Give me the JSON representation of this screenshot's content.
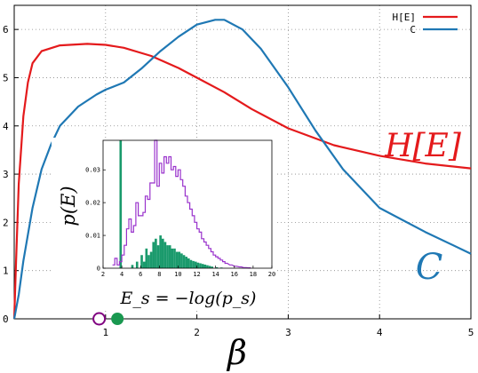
{
  "chart_data": [
    {
      "type": "line",
      "xlabel": "β",
      "ylabel": "",
      "xlim": [
        0,
        5
      ],
      "ylim": [
        0,
        6.5
      ],
      "x_ticks": [
        "1",
        "2",
        "3",
        "4",
        "5"
      ],
      "y_ticks": [
        "0",
        "1",
        "2",
        "3",
        "4",
        "5",
        "6"
      ],
      "grid": true,
      "legend_position": "top-right",
      "series": [
        {
          "name": "H[E]",
          "curve_label": "H[E]",
          "color": "#e41a1c",
          "points": [
            [
              0.0,
              0.0
            ],
            [
              0.02,
              1.2
            ],
            [
              0.05,
              2.8
            ],
            [
              0.1,
              4.2
            ],
            [
              0.15,
              4.9
            ],
            [
              0.2,
              5.3
            ],
            [
              0.3,
              5.55
            ],
            [
              0.5,
              5.67
            ],
            [
              0.8,
              5.7
            ],
            [
              1.0,
              5.68
            ],
            [
              1.2,
              5.62
            ],
            [
              1.5,
              5.45
            ],
            [
              1.8,
              5.2
            ],
            [
              2.0,
              5.0
            ],
            [
              2.3,
              4.7
            ],
            [
              2.6,
              4.35
            ],
            [
              3.0,
              3.95
            ],
            [
              3.5,
              3.6
            ],
            [
              4.0,
              3.38
            ],
            [
              4.5,
              3.22
            ],
            [
              5.0,
              3.12
            ]
          ]
        },
        {
          "name": "C",
          "curve_label": "C",
          "color": "#1f78b4",
          "points": [
            [
              0.0,
              0.0
            ],
            [
              0.05,
              0.5
            ],
            [
              0.1,
              1.2
            ],
            [
              0.2,
              2.3
            ],
            [
              0.3,
              3.1
            ],
            [
              0.4,
              3.6
            ],
            [
              0.5,
              4.0
            ],
            [
              0.7,
              4.4
            ],
            [
              0.9,
              4.65
            ],
            [
              1.0,
              4.75
            ],
            [
              1.2,
              4.9
            ],
            [
              1.4,
              5.2
            ],
            [
              1.6,
              5.55
            ],
            [
              1.8,
              5.85
            ],
            [
              2.0,
              6.1
            ],
            [
              2.2,
              6.2
            ],
            [
              2.3,
              6.2
            ],
            [
              2.5,
              6.0
            ],
            [
              2.7,
              5.6
            ],
            [
              3.0,
              4.8
            ],
            [
              3.3,
              3.9
            ],
            [
              3.6,
              3.1
            ],
            [
              4.0,
              2.3
            ],
            [
              4.5,
              1.8
            ],
            [
              5.0,
              1.35
            ]
          ]
        }
      ],
      "markers": [
        {
          "x": 0.93,
          "y": 0,
          "style": "open",
          "color": "#800080"
        },
        {
          "x": 1.13,
          "y": 0,
          "style": "filled",
          "color": "#1a9850"
        }
      ]
    },
    {
      "type": "bar",
      "xlabel": "E_s = −log(p_s)",
      "ylabel": "p(E)",
      "xlim": [
        2,
        20
      ],
      "ylim": [
        0,
        0.039
      ],
      "x_ticks": [
        "2",
        "4",
        "6",
        "8",
        "10",
        "12",
        "14",
        "16",
        "18",
        "20"
      ],
      "y_ticks": [
        "0",
        "0.01",
        "0.02",
        "0.03"
      ],
      "bin_width": 0.25,
      "series": [
        {
          "name": "",
          "style": "step",
          "color": "#9932cc",
          "bins": [
            [
              3.0,
              0.001
            ],
            [
              3.25,
              0.003
            ],
            [
              3.5,
              0.001
            ],
            [
              3.75,
              0.002
            ],
            [
              4.0,
              0.004
            ],
            [
              4.25,
              0.007
            ],
            [
              4.5,
              0.012
            ],
            [
              4.75,
              0.015
            ],
            [
              5.0,
              0.011
            ],
            [
              5.25,
              0.013
            ],
            [
              5.5,
              0.02
            ],
            [
              5.75,
              0.016
            ],
            [
              6.0,
              0.016
            ],
            [
              6.25,
              0.017
            ],
            [
              6.5,
              0.022
            ],
            [
              6.75,
              0.021
            ],
            [
              7.0,
              0.026
            ],
            [
              7.25,
              0.026
            ],
            [
              7.5,
              0.039
            ],
            [
              7.75,
              0.025
            ],
            [
              8.0,
              0.032
            ],
            [
              8.25,
              0.029
            ],
            [
              8.5,
              0.034
            ],
            [
              8.75,
              0.032
            ],
            [
              9.0,
              0.034
            ],
            [
              9.25,
              0.03
            ],
            [
              9.5,
              0.031
            ],
            [
              9.75,
              0.028
            ],
            [
              10.0,
              0.03
            ],
            [
              10.25,
              0.027
            ],
            [
              10.5,
              0.025
            ],
            [
              10.75,
              0.022
            ],
            [
              11.0,
              0.02
            ],
            [
              11.25,
              0.018
            ],
            [
              11.5,
              0.016
            ],
            [
              11.75,
              0.014
            ],
            [
              12.0,
              0.012
            ],
            [
              12.25,
              0.011
            ],
            [
              12.5,
              0.009
            ],
            [
              12.75,
              0.008
            ],
            [
              13.0,
              0.007
            ],
            [
              13.25,
              0.006
            ],
            [
              13.5,
              0.005
            ],
            [
              13.75,
              0.004
            ],
            [
              14.0,
              0.0035
            ],
            [
              14.25,
              0.003
            ],
            [
              14.5,
              0.0025
            ],
            [
              14.75,
              0.002
            ],
            [
              15.0,
              0.0015
            ],
            [
              15.5,
              0.001
            ],
            [
              16.0,
              0.0006
            ],
            [
              16.5,
              0.0004
            ],
            [
              17.0,
              0.0002
            ],
            [
              17.5,
              0.0001
            ]
          ]
        },
        {
          "name": "",
          "style": "filled",
          "color": "#1a9a6c",
          "bins": [
            [
              3.75,
              0.039
            ],
            [
              5.0,
              0.001
            ],
            [
              5.5,
              0.002
            ],
            [
              6.0,
              0.004
            ],
            [
              6.25,
              0.002
            ],
            [
              6.5,
              0.006
            ],
            [
              6.75,
              0.004
            ],
            [
              7.0,
              0.005
            ],
            [
              7.25,
              0.008
            ],
            [
              7.5,
              0.009
            ],
            [
              7.75,
              0.007
            ],
            [
              8.0,
              0.01
            ],
            [
              8.25,
              0.009
            ],
            [
              8.5,
              0.008
            ],
            [
              8.75,
              0.007
            ],
            [
              9.0,
              0.007
            ],
            [
              9.25,
              0.006
            ],
            [
              9.5,
              0.006
            ],
            [
              9.75,
              0.005
            ],
            [
              10.0,
              0.005
            ],
            [
              10.25,
              0.0045
            ],
            [
              10.5,
              0.004
            ],
            [
              10.75,
              0.0035
            ],
            [
              11.0,
              0.003
            ],
            [
              11.25,
              0.0025
            ],
            [
              11.5,
              0.0022
            ],
            [
              11.75,
              0.002
            ],
            [
              12.0,
              0.0017
            ],
            [
              12.25,
              0.0015
            ],
            [
              12.5,
              0.0013
            ],
            [
              12.75,
              0.0011
            ],
            [
              13.0,
              0.0009
            ],
            [
              13.25,
              0.0007
            ],
            [
              13.5,
              0.0005
            ],
            [
              14.0,
              0.0003
            ],
            [
              14.5,
              0.0002
            ]
          ]
        }
      ]
    }
  ]
}
